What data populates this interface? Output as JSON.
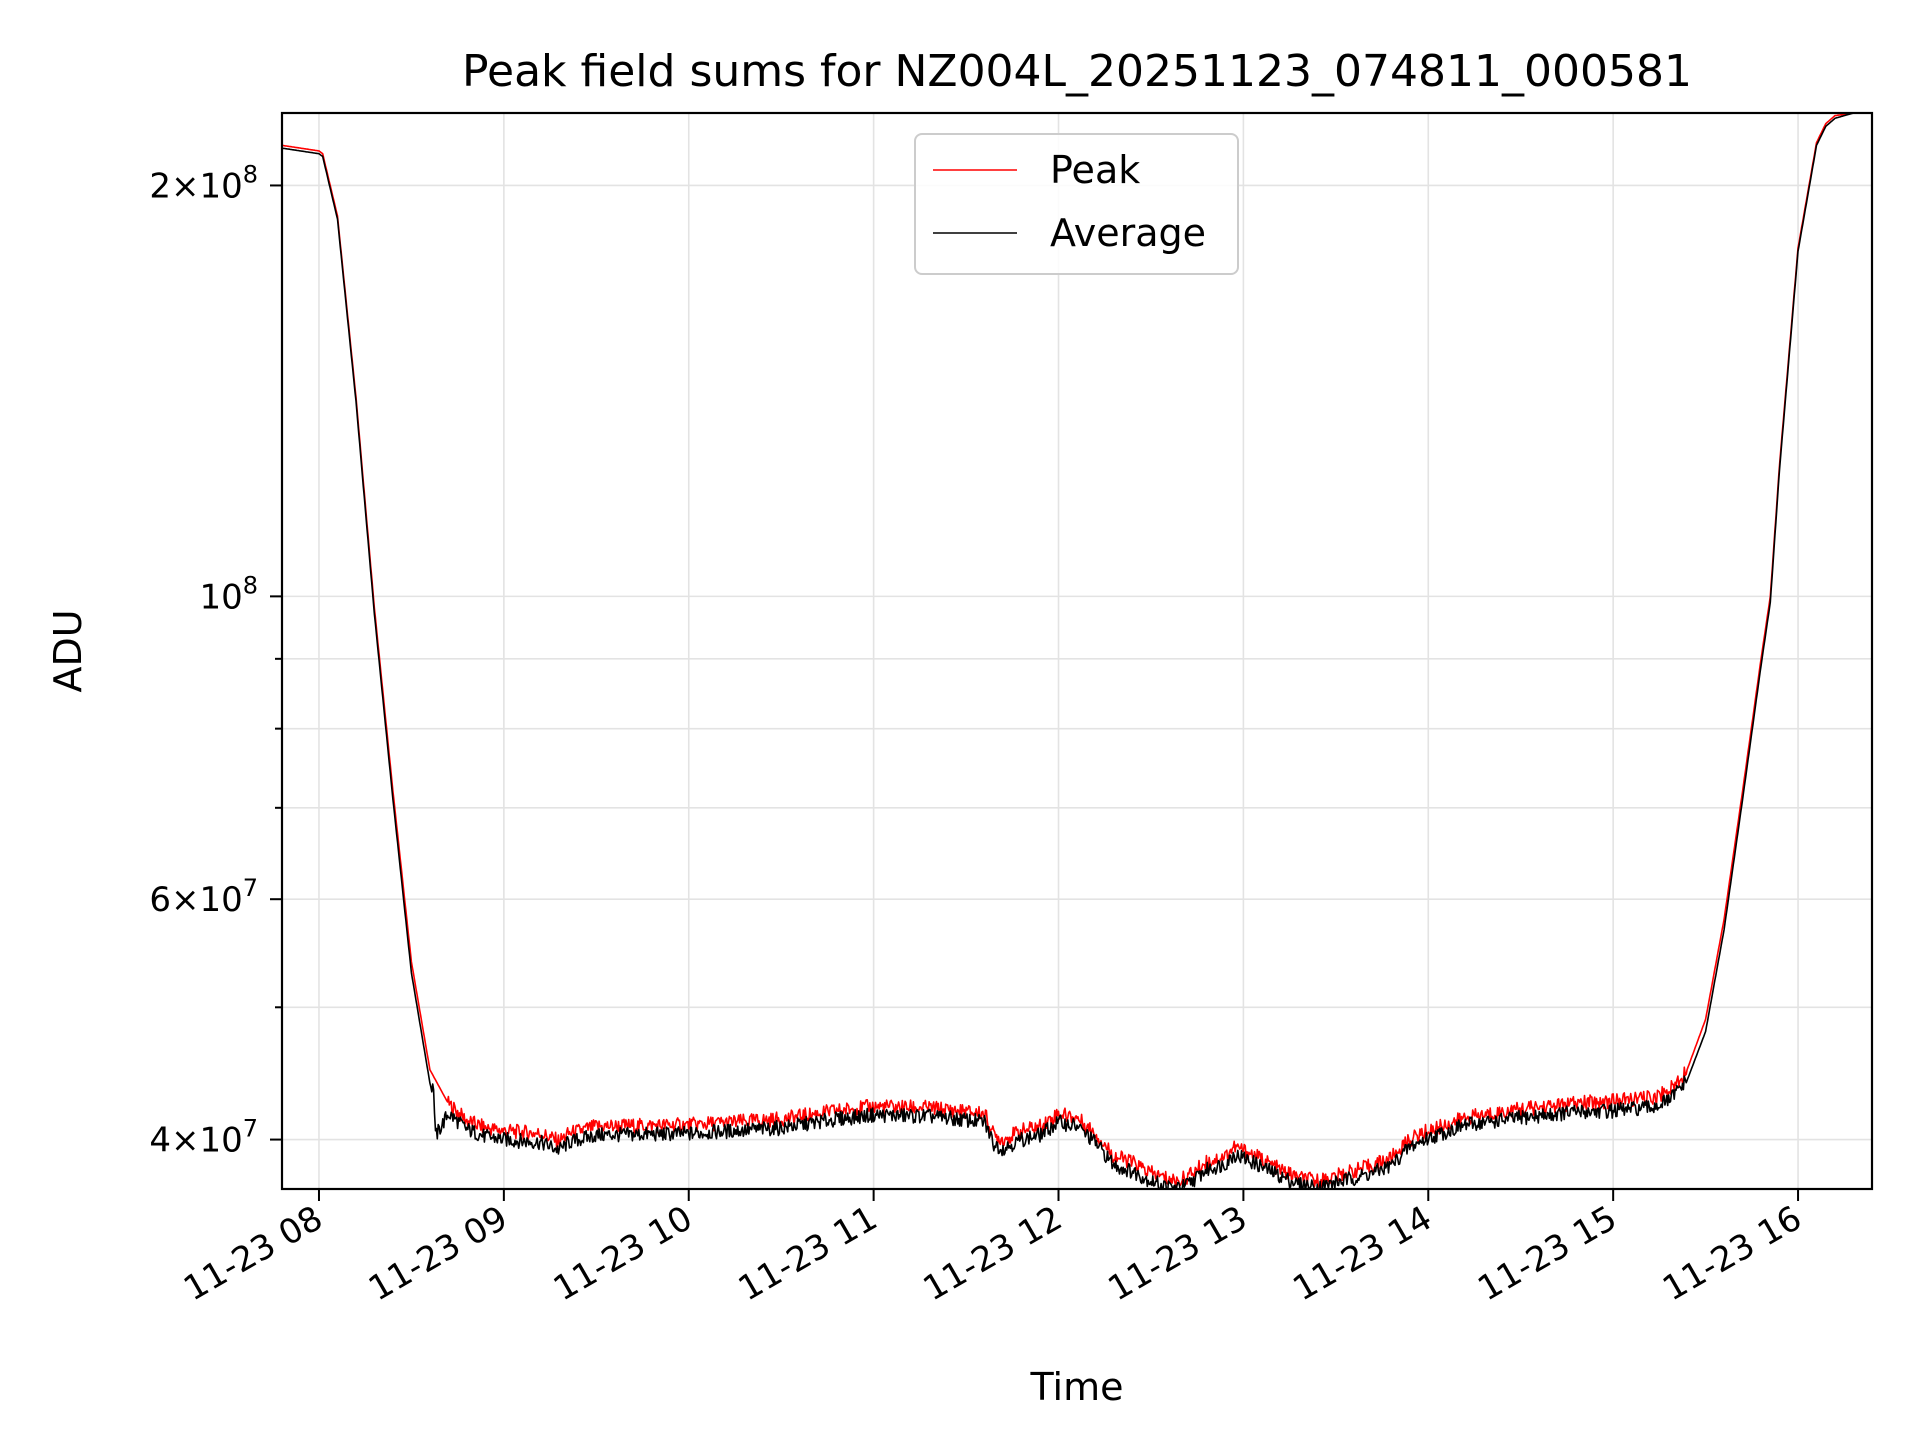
{
  "chart_data": {
    "type": "line",
    "title": "Peak field sums for NZ004L_20251123_074811_000581",
    "xlabel": "Time",
    "ylabel": "ADU",
    "y_scale": "log",
    "grid": true,
    "legend_position": "upper-center",
    "xlim": [
      7.8,
      16.4
    ],
    "ylim": [
      36800000,
      226000000
    ],
    "x_ticks": [
      {
        "value": 8,
        "label": "11-23 08"
      },
      {
        "value": 9,
        "label": "11-23 09"
      },
      {
        "value": 10,
        "label": "11-23 10"
      },
      {
        "value": 11,
        "label": "11-23 11"
      },
      {
        "value": 12,
        "label": "11-23 12"
      },
      {
        "value": 13,
        "label": "11-23 13"
      },
      {
        "value": 14,
        "label": "11-23 14"
      },
      {
        "value": 15,
        "label": "11-23 15"
      },
      {
        "value": 16,
        "label": "11-23 16"
      }
    ],
    "y_major_ticks": [
      {
        "value": 40000000,
        "mantissa": "4",
        "exponent": "7"
      },
      {
        "value": 60000000,
        "mantissa": "6",
        "exponent": "7"
      },
      {
        "value": 100000000,
        "mantissa": "",
        "exponent": "8"
      },
      {
        "value": 200000000,
        "mantissa": "2",
        "exponent": "8"
      }
    ],
    "y_minor_ticks": [
      50000000,
      70000000,
      80000000,
      90000000
    ],
    "series": [
      {
        "name": "Peak",
        "color": "#ff0000",
        "x": [
          7.8,
          7.9,
          8.0,
          8.02,
          8.1,
          8.2,
          8.3,
          8.4,
          8.5,
          8.6,
          8.7,
          8.8,
          8.9,
          9.0,
          9.2,
          9.3,
          9.35,
          9.5,
          10.0,
          10.5,
          10.6,
          10.7,
          10.8,
          11.0,
          11.3,
          11.6,
          11.65,
          11.7,
          11.8,
          11.9,
          12.0,
          12.1,
          12.2,
          12.3,
          12.4,
          12.5,
          12.6,
          12.65,
          12.7,
          12.8,
          12.9,
          12.95,
          13.0,
          13.1,
          13.2,
          13.3,
          13.4,
          13.5,
          13.7,
          13.8,
          13.9,
          14.0,
          14.2,
          14.5,
          14.8,
          15.0,
          15.2,
          15.3,
          15.4,
          15.5,
          15.6,
          15.7,
          15.8,
          15.85,
          15.9,
          16.0,
          16.1,
          16.15,
          16.2,
          16.3,
          16.4
        ],
        "values": [
          214000000,
          213000000,
          212000000,
          211000000,
          190000000,
          140000000,
          98000000,
          72000000,
          54000000,
          45000000,
          42500000,
          41300000,
          40800000,
          40600000,
          40400000,
          39900000,
          40400000,
          40900000,
          41000000,
          41400000,
          41600000,
          41800000,
          42000000,
          42300000,
          42200000,
          41800000,
          40300000,
          40000000,
          40600000,
          40900000,
          41800000,
          41500000,
          40400000,
          38900000,
          38500000,
          37800000,
          37400000,
          37300000,
          37600000,
          38500000,
          38900000,
          39500000,
          39300000,
          38700000,
          38000000,
          37500000,
          37300000,
          37600000,
          38300000,
          38800000,
          40000000,
          40600000,
          41500000,
          42100000,
          42500000,
          42700000,
          42900000,
          43400000,
          45000000,
          49000000,
          58000000,
          72000000,
          90000000,
          100000000,
          125000000,
          180000000,
          215000000,
          222000000,
          225000000,
          226000000,
          226000000
        ]
      },
      {
        "name": "Average",
        "color": "#000000",
        "x": [
          7.8,
          7.9,
          8.0,
          8.02,
          8.1,
          8.2,
          8.3,
          8.4,
          8.5,
          8.6,
          8.62,
          8.63,
          8.7,
          8.8,
          8.9,
          9.0,
          9.2,
          9.3,
          9.35,
          9.5,
          10.0,
          10.5,
          10.6,
          10.7,
          10.8,
          11.0,
          11.3,
          11.6,
          11.65,
          11.7,
          11.8,
          11.9,
          12.0,
          12.1,
          12.2,
          12.3,
          12.4,
          12.5,
          12.6,
          12.65,
          12.7,
          12.8,
          12.9,
          12.95,
          13.0,
          13.1,
          13.2,
          13.3,
          13.4,
          13.5,
          13.7,
          13.8,
          13.9,
          14.0,
          14.2,
          14.5,
          14.8,
          15.0,
          15.2,
          15.3,
          15.4,
          15.5,
          15.6,
          15.7,
          15.8,
          15.85,
          15.9,
          16.0,
          16.1,
          16.15,
          16.2,
          16.3,
          16.4
        ],
        "values": [
          213000000,
          212000000,
          211000000,
          210000000,
          189000000,
          139000000,
          97000000,
          71000000,
          53000000,
          44000000,
          43500000,
          40200000,
          41800000,
          40700000,
          40200000,
          40000000,
          39800000,
          39300000,
          39800000,
          40300000,
          40400000,
          40800000,
          41000000,
          41200000,
          41400000,
          41700000,
          41600000,
          41200000,
          39700000,
          39400000,
          40000000,
          40300000,
          41200000,
          40900000,
          39800000,
          38300000,
          37900000,
          37300000,
          36900000,
          36850000,
          37100000,
          38000000,
          38400000,
          39000000,
          38800000,
          38200000,
          37600000,
          37100000,
          36900000,
          37200000,
          37800000,
          38300000,
          39500000,
          40100000,
          41000000,
          41500000,
          41900000,
          42000000,
          42200000,
          42700000,
          44200000,
          48000000,
          57000000,
          71000000,
          89000000,
          99000000,
          124000000,
          179000000,
          214000000,
          221000000,
          224000000,
          226000000,
          226000000
        ]
      }
    ]
  }
}
